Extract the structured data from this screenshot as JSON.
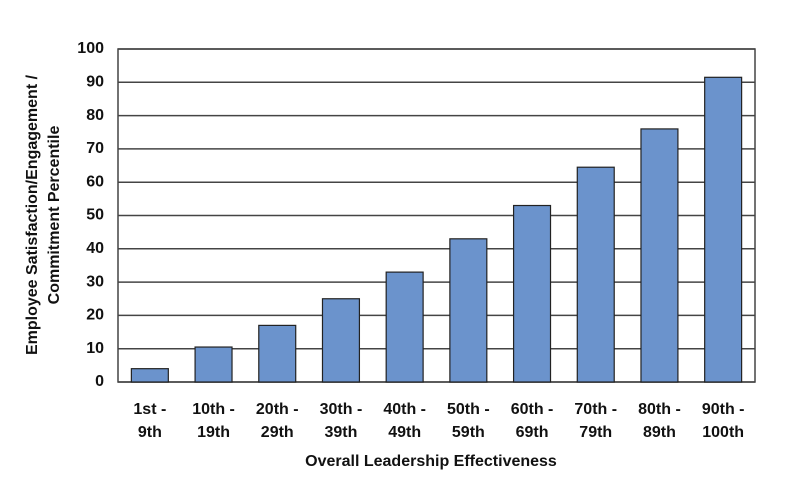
{
  "chart_data": {
    "type": "bar",
    "x_label": "Overall Leadership Effectiveness",
    "y_label": [
      "Employee Satisfaction/Engagement /",
      "Commitment Percentile"
    ],
    "categories": [
      [
        "1st -",
        "9th"
      ],
      [
        "10th -",
        "19th"
      ],
      [
        "20th -",
        "29th"
      ],
      [
        "30th -",
        "39th"
      ],
      [
        "40th -",
        "49th"
      ],
      [
        "50th -",
        "59th"
      ],
      [
        "60th -",
        "69th"
      ],
      [
        "70th -",
        "79th"
      ],
      [
        "80th -",
        "89th"
      ],
      [
        "90th -",
        "100th"
      ]
    ],
    "values": [
      4,
      10.5,
      17,
      25,
      33,
      43,
      53,
      64.5,
      76,
      91.5
    ],
    "color": "#6b93cc",
    "ylim": [
      0,
      100
    ],
    "yticks": [
      0,
      10,
      20,
      30,
      40,
      50,
      60,
      70,
      80,
      90,
      100
    ],
    "grid": true
  }
}
